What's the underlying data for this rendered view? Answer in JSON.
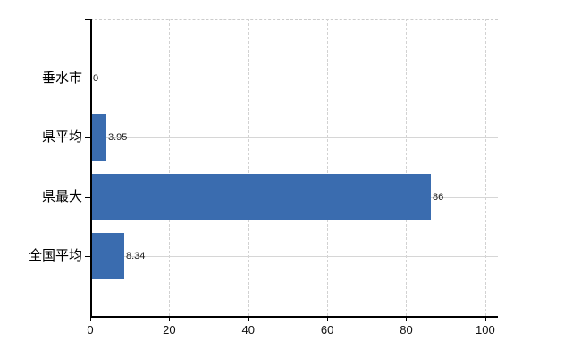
{
  "chart_data": {
    "type": "bar",
    "orientation": "horizontal",
    "title": "",
    "categories": [
      "垂水市",
      "県平均",
      "県最大",
      "全国平均"
    ],
    "values": [
      0,
      3.95,
      86,
      8.34
    ],
    "value_labels": [
      "0",
      "3.95",
      "86",
      "8.34"
    ],
    "x_tick_labels": [
      "0",
      "20",
      "40",
      "60",
      "80",
      "100"
    ],
    "x_tick_values": [
      0,
      20,
      40,
      60,
      80,
      100
    ],
    "xlim": [
      0,
      103.2
    ],
    "grid": "on",
    "legend": "none",
    "colors": {
      "bar": "#3a6caf",
      "axis": "#000000",
      "grid": "#d6d6d6",
      "text": "#000000"
    }
  }
}
